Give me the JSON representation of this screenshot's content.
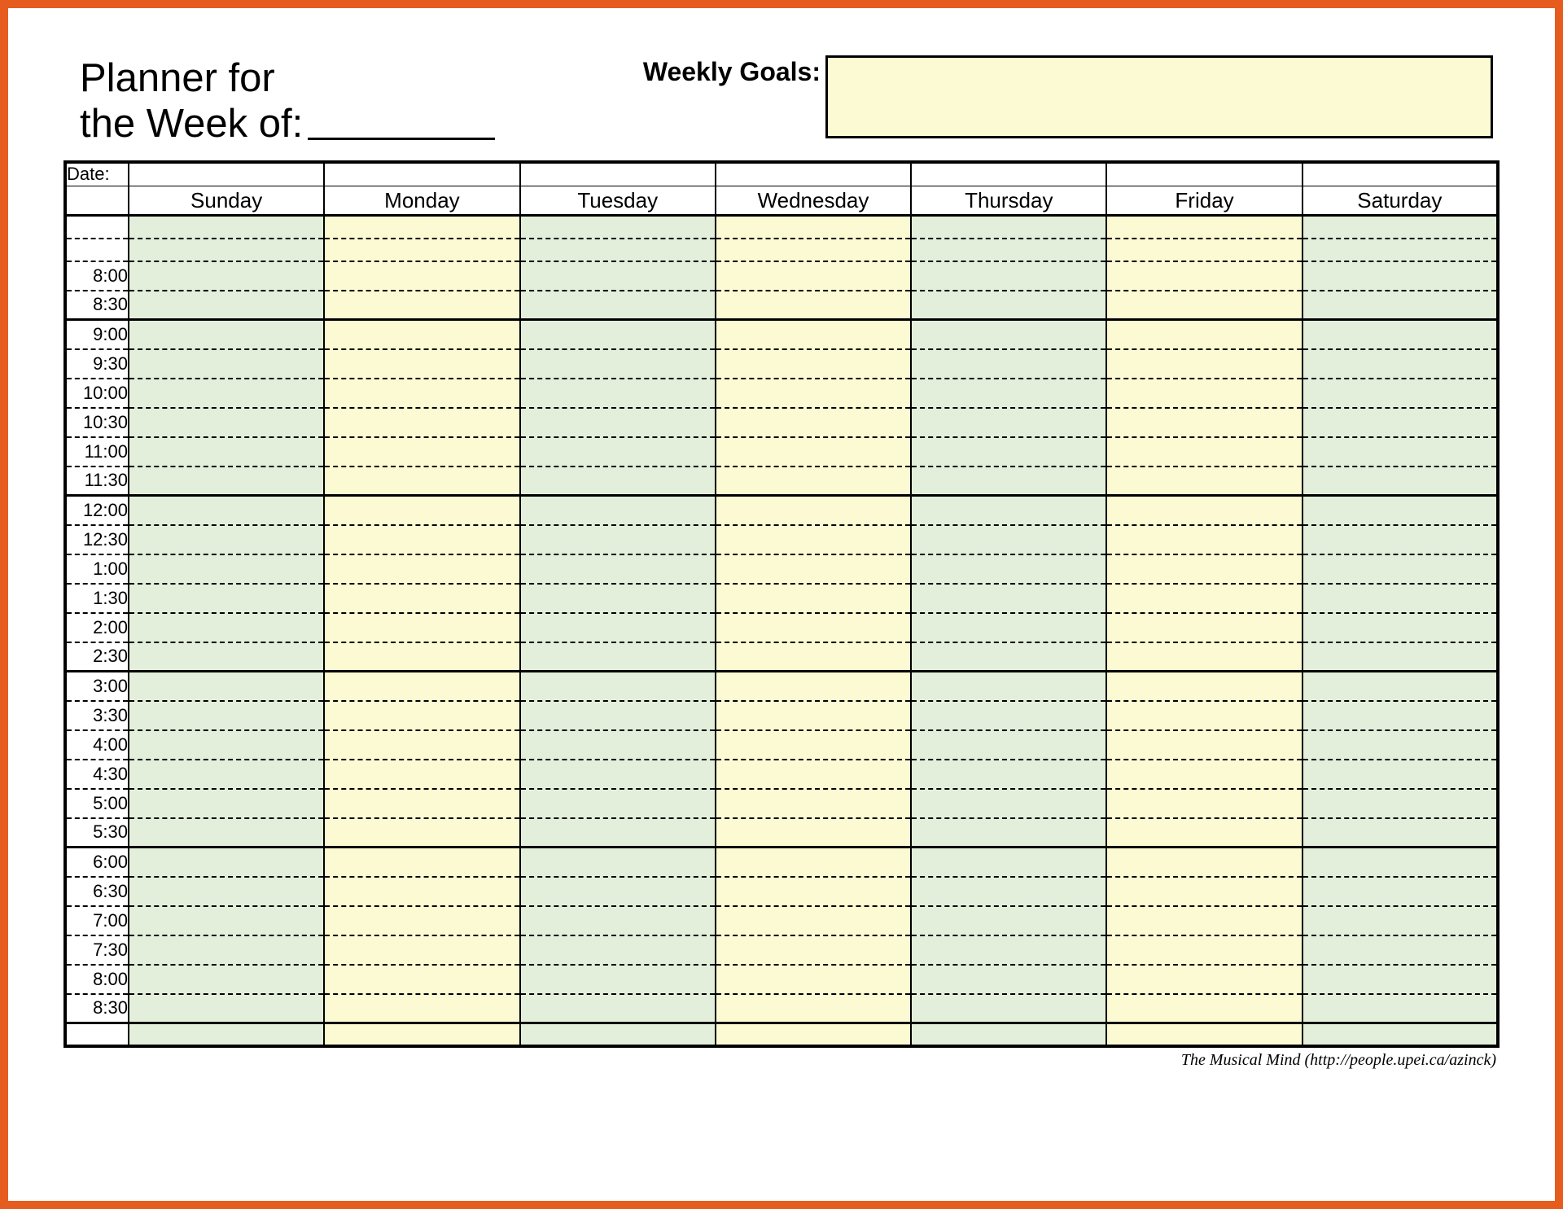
{
  "frame": {
    "border_color": "#e65c1f"
  },
  "header": {
    "title_line1": "Planner for",
    "title_line2": "the Week of:",
    "goals_label": "Weekly Goals:",
    "goals_value": ""
  },
  "table": {
    "date_label": "Date:",
    "days": [
      "Sunday",
      "Monday",
      "Tuesday",
      "Wednesday",
      "Thursday",
      "Friday",
      "Saturday"
    ],
    "day_colors": [
      "green",
      "cream",
      "green",
      "cream",
      "green",
      "cream",
      "green",
      "cream"
    ],
    "colors": {
      "green": "#e3efdb",
      "cream": "#fbfad2",
      "solid_border": "#000000",
      "dashed_border": "#000000"
    },
    "time_column_width_ratio": 0.044,
    "rows": [
      {
        "label": "",
        "sep": "dashed"
      },
      {
        "label": "",
        "sep": "dashed"
      },
      {
        "label": "8:00",
        "sep": "dashed"
      },
      {
        "label": "8:30",
        "sep": "solid"
      },
      {
        "label": "9:00",
        "sep": "dashed"
      },
      {
        "label": "9:30",
        "sep": "dashed"
      },
      {
        "label": "10:00",
        "sep": "dashed"
      },
      {
        "label": "10:30",
        "sep": "dashed"
      },
      {
        "label": "11:00",
        "sep": "dashed"
      },
      {
        "label": "11:30",
        "sep": "solid"
      },
      {
        "label": "12:00",
        "sep": "dashed"
      },
      {
        "label": "12:30",
        "sep": "dashed"
      },
      {
        "label": "1:00",
        "sep": "dashed"
      },
      {
        "label": "1:30",
        "sep": "dashed"
      },
      {
        "label": "2:00",
        "sep": "dashed"
      },
      {
        "label": "2:30",
        "sep": "solid"
      },
      {
        "label": "3:00",
        "sep": "dashed"
      },
      {
        "label": "3:30",
        "sep": "dashed"
      },
      {
        "label": "4:00",
        "sep": "dashed"
      },
      {
        "label": "4:30",
        "sep": "dashed"
      },
      {
        "label": "5:00",
        "sep": "dashed"
      },
      {
        "label": "5:30",
        "sep": "solid"
      },
      {
        "label": "6:00",
        "sep": "dashed"
      },
      {
        "label": "6:30",
        "sep": "dashed"
      },
      {
        "label": "7:00",
        "sep": "dashed"
      },
      {
        "label": "7:30",
        "sep": "dashed"
      },
      {
        "label": "8:00",
        "sep": "dashed"
      },
      {
        "label": "8:30",
        "sep": "solid"
      },
      {
        "label": "",
        "sep": "none"
      }
    ]
  },
  "footer": {
    "credit": "The Musical Mind   (http://people.upei.ca/azinck)"
  }
}
